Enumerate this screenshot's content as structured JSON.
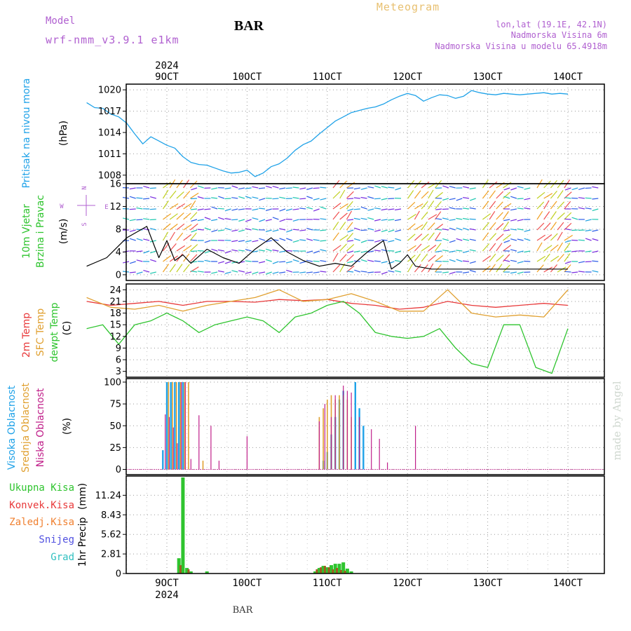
{
  "header": {
    "model_label": "Model",
    "model_name": "wrf-nmm_v3.9.1  e1km",
    "station": "BAR",
    "product": "Meteogram",
    "location": "lon,lat (19.1E, 42.1N)",
    "altitude": "Nadmorska Visina 6m",
    "model_altitude": "Nadmorska Visina u modelu 65.4918m",
    "credit": "made by Angel",
    "footer_station": "BAR"
  },
  "x_axis": {
    "year": "2024",
    "ticks": [
      "9OCT",
      "10OCT",
      "11OCT",
      "12OCT",
      "13OCT",
      "14OCT"
    ]
  },
  "colors": {
    "pressure": "#1fa2e8",
    "wind_speed": "#000000",
    "gust": "#ff4040",
    "t2m": "#e8393a",
    "tsfc": "#e0a030",
    "dewpt": "#2ec42e",
    "high_cloud": "#1fa2e8",
    "mid_cloud": "#e0a030",
    "low_cloud": "#c0208a",
    "total_rain": "#2ec42e",
    "conv_rain": "#e8393a",
    "freezing_rain": "#f08030",
    "snow": "#5050e0",
    "hail": "#30c0c0"
  },
  "chart_data": [
    {
      "type": "line",
      "panel": "pressure",
      "ylabel": "Pritisak na nivou mora",
      "unit": "(hPa)",
      "yticks": [
        1008,
        1011,
        1014,
        1017,
        1020
      ],
      "ylim": [
        1006.8,
        1020.8
      ],
      "x": [
        0,
        0.1,
        0.2,
        0.3,
        0.4,
        0.5,
        0.6,
        0.7,
        0.8,
        0.9,
        1.0,
        1.1,
        1.2,
        1.3,
        1.4,
        1.5,
        1.6,
        1.7,
        1.8,
        1.9,
        2.0,
        2.1,
        2.2,
        2.3,
        2.4,
        2.5,
        2.6,
        2.7,
        2.8,
        2.9,
        3.0,
        3.1,
        3.2,
        3.3,
        3.4,
        3.5,
        3.6,
        3.7,
        3.8,
        3.9,
        4.0,
        4.1,
        4.2,
        4.3,
        4.4,
        4.5,
        4.6,
        4.7,
        4.8,
        4.9,
        5.0,
        5.1,
        5.2,
        5.3,
        5.4,
        5.5,
        5.6,
        5.7,
        5.8,
        5.9,
        6.0
      ],
      "y": [
        1018.2,
        1017.5,
        1017.4,
        1016.6,
        1016.2,
        1015.3,
        1013.8,
        1012.4,
        1013.4,
        1012.8,
        1012.2,
        1011.8,
        1010.6,
        1009.8,
        1009.5,
        1009.4,
        1009.0,
        1008.6,
        1008.3,
        1008.4,
        1008.7,
        1007.8,
        1008.3,
        1009.2,
        1009.6,
        1010.4,
        1011.5,
        1012.3,
        1012.8,
        1013.8,
        1014.7,
        1015.6,
        1016.2,
        1016.8,
        1017.1,
        1017.4,
        1017.6,
        1018.0,
        1018.6,
        1019.1,
        1019.5,
        1019.2,
        1018.4,
        1018.9,
        1019.3,
        1019.2,
        1018.8,
        1019.1,
        1019.9,
        1019.6,
        1019.4,
        1019.3,
        1019.5,
        1019.4,
        1019.3,
        1019.4,
        1019.5,
        1019.6,
        1019.4,
        1019.5,
        1019.4
      ]
    },
    {
      "type": "line",
      "panel": "wind",
      "ylabel": "10m Vjetar",
      "ylabel2": "Brzina i Pravac",
      "unit": "(m/s)",
      "compass": [
        "N",
        "W",
        "E",
        "S"
      ],
      "yticks": [
        0,
        4,
        8,
        12,
        16
      ],
      "ylim": [
        -1,
        16
      ],
      "x": [
        0,
        0.25,
        0.5,
        0.75,
        0.9,
        1.0,
        1.1,
        1.2,
        1.3,
        1.5,
        1.7,
        1.9,
        2.1,
        2.3,
        2.5,
        2.7,
        2.9,
        3.1,
        3.3,
        3.5,
        3.7,
        3.8,
        3.9,
        4.0,
        4.1,
        4.3,
        4.5,
        4.7,
        4.9,
        5.0,
        5.2,
        5.4,
        5.6,
        5.8,
        6.0
      ],
      "y": [
        1.5,
        3.0,
        6.5,
        8.5,
        3.0,
        6.0,
        2.5,
        3.5,
        2.0,
        4.5,
        3.0,
        2.0,
        4.5,
        6.5,
        4.0,
        2.5,
        1.5,
        2.0,
        1.5,
        4.0,
        6.0,
        1.0,
        2.0,
        3.5,
        1.5,
        1.0,
        1.0,
        1.0,
        1.0,
        1.0,
        1.0,
        1.0,
        1.0,
        1.0,
        1.0
      ]
    },
    {
      "type": "line",
      "panel": "temperature",
      "ylabel_t2m": "2m Temp",
      "ylabel_tsfc": "SFC Temp",
      "ylabel_dew": "dewpt Temp",
      "unit": "(C)",
      "yticks": [
        3,
        6,
        9,
        12,
        15,
        18,
        21,
        24
      ],
      "ylim": [
        1.5,
        25.5
      ],
      "series": [
        {
          "key": "t2m",
          "x": [
            0,
            0.3,
            0.6,
            0.9,
            1.2,
            1.5,
            1.8,
            2.1,
            2.4,
            2.7,
            3.0,
            3.3,
            3.6,
            3.9,
            4.2,
            4.5,
            4.8,
            5.1,
            5.4,
            5.7,
            6.0
          ],
          "y": [
            21,
            20,
            20.5,
            21,
            20,
            21,
            21,
            20.8,
            21.5,
            21.2,
            21.5,
            20.5,
            20,
            19,
            19.5,
            21,
            20,
            19.5,
            20,
            20.5,
            20
          ]
        },
        {
          "key": "tsfc",
          "x": [
            0,
            0.3,
            0.6,
            0.9,
            1.2,
            1.5,
            1.8,
            2.1,
            2.4,
            2.7,
            3.0,
            3.3,
            3.6,
            3.9,
            4.2,
            4.5,
            4.8,
            5.1,
            5.4,
            5.7,
            6.0
          ],
          "y": [
            22,
            19.5,
            19,
            20,
            18.5,
            20,
            21,
            22,
            24,
            21,
            21.5,
            23,
            21,
            18.5,
            18.5,
            24,
            18,
            17,
            17.5,
            17,
            24
          ]
        },
        {
          "key": "dewpt",
          "x": [
            0,
            0.2,
            0.4,
            0.6,
            0.8,
            1.0,
            1.2,
            1.4,
            1.6,
            1.8,
            2.0,
            2.2,
            2.4,
            2.6,
            2.8,
            3.0,
            3.2,
            3.4,
            3.6,
            3.8,
            4.0,
            4.2,
            4.4,
            4.6,
            4.8,
            5.0,
            5.2,
            5.4,
            5.6,
            5.8,
            6.0
          ],
          "y": [
            14,
            15,
            10,
            15,
            16,
            18,
            16,
            13,
            15,
            16,
            17,
            16,
            13,
            17,
            18,
            20,
            21,
            18,
            13,
            12,
            11.5,
            12,
            14,
            9,
            5,
            4,
            15,
            15,
            4,
            2.5,
            14
          ]
        }
      ]
    },
    {
      "type": "bar",
      "panel": "cloud",
      "ylabel_high": "Visoka Oblacnost",
      "ylabel_mid": "Srednja Oblacnost",
      "ylabel_low": "Niska Oblacnost",
      "unit": "(%)",
      "yticks": [
        0,
        25,
        50,
        75,
        100
      ],
      "ylim": [
        -6,
        104
      ],
      "high": {
        "x": [
          0.95,
          1.0,
          1.05,
          1.1,
          1.15,
          1.2,
          2.95,
          3.0,
          3.05,
          3.1,
          3.15,
          3.2,
          3.35,
          3.4,
          3.45
        ],
        "y": [
          22,
          100,
          100,
          100,
          100,
          100,
          10,
          20,
          40,
          60,
          80,
          90,
          100,
          70,
          50
        ]
      },
      "mid": {
        "x": [
          1.02,
          1.07,
          1.12,
          1.17,
          1.22,
          1.27,
          1.45,
          2.9,
          2.95,
          3.0,
          3.05,
          3.1,
          3.15,
          3.2,
          3.25,
          3.3
        ],
        "y": [
          100,
          100,
          100,
          100,
          100,
          100,
          10,
          60,
          70,
          80,
          85,
          80,
          85,
          85,
          80,
          60
        ]
      },
      "low": {
        "x": [
          0.98,
          1.03,
          1.08,
          1.13,
          1.18,
          1.23,
          1.3,
          1.4,
          1.55,
          1.65,
          2.0,
          2.9,
          2.97,
          3.05,
          3.1,
          3.2,
          3.25,
          3.3,
          3.4,
          3.55,
          3.65,
          3.75,
          4.1
        ],
        "y": [
          63,
          60,
          48,
          30,
          100,
          100,
          12,
          62,
          50,
          10,
          38,
          55,
          75,
          60,
          85,
          96,
          90,
          88,
          60,
          46,
          35,
          8,
          50
        ]
      }
    },
    {
      "type": "bar",
      "panel": "precip",
      "ylabel": "1hr Precip",
      "unit": "(mm)",
      "legend": [
        "Ukupna Kisa",
        "Konvek.Kisa",
        "Zaledj.Kisa",
        "Snijeg",
        "Grad"
      ],
      "yticks": [
        0,
        2.81,
        5.62,
        8.43,
        11.24
      ],
      "ylim": [
        0,
        14
      ],
      "total": {
        "x": [
          1.15,
          1.2,
          1.25,
          1.3,
          1.5,
          2.85,
          2.9,
          2.95,
          3.0,
          3.05,
          3.1,
          3.15,
          3.2,
          3.25,
          3.3
        ],
        "y": [
          2.2,
          13.8,
          0.8,
          0.3,
          0.3,
          0.3,
          0.8,
          1.1,
          0.9,
          1.2,
          1.4,
          1.4,
          1.6,
          0.7,
          0.3
        ]
      },
      "convective": {
        "x": [
          1.17,
          1.27,
          2.87,
          2.92,
          2.97,
          3.02,
          3.07,
          3.12,
          3.17,
          3.22
        ],
        "y": [
          1.2,
          0.6,
          0.6,
          0.9,
          1.1,
          0.9,
          0.6,
          0.8,
          0.5,
          0.4
        ]
      }
    }
  ]
}
